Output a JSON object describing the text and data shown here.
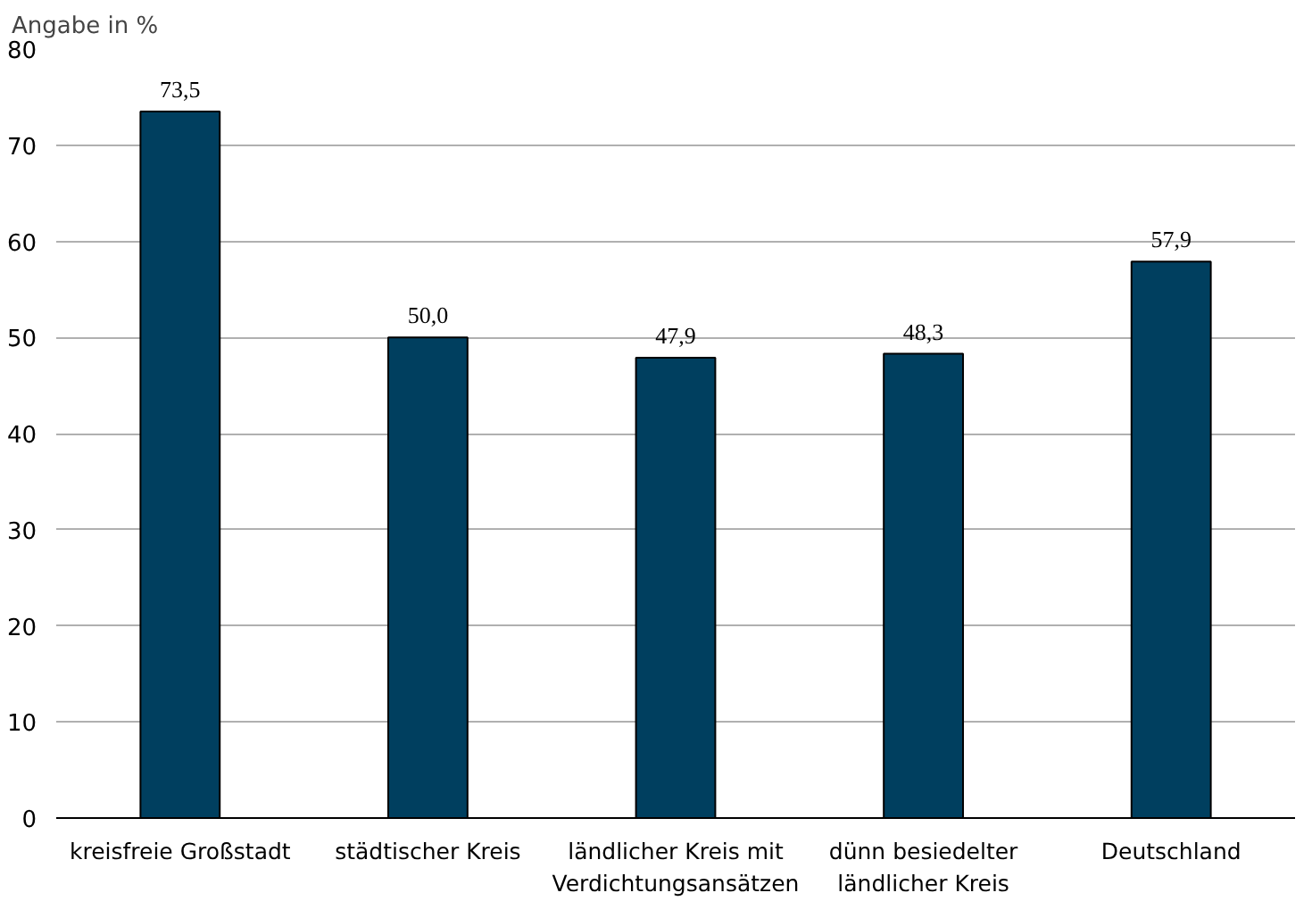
{
  "chart_data": {
    "type": "bar",
    "ylabel": "Angabe in %",
    "categories": [
      "kreisfreie Großstadt",
      "städtischer Kreis",
      "ländlicher Kreis mit\nVerdichtungsansätzen",
      "dünn besiedelter\nländlicher Kreis",
      "Deutschland"
    ],
    "values": [
      73.5,
      50.0,
      47.9,
      48.3,
      57.9
    ],
    "value_labels": [
      "73,5",
      "50,0",
      "47,9",
      "48,3",
      "57,9"
    ],
    "color": "#003f5f",
    "ylim": [
      0,
      80
    ],
    "yticks": [
      0,
      10,
      20,
      30,
      40,
      50,
      60,
      70,
      80
    ],
    "grid": "y"
  }
}
